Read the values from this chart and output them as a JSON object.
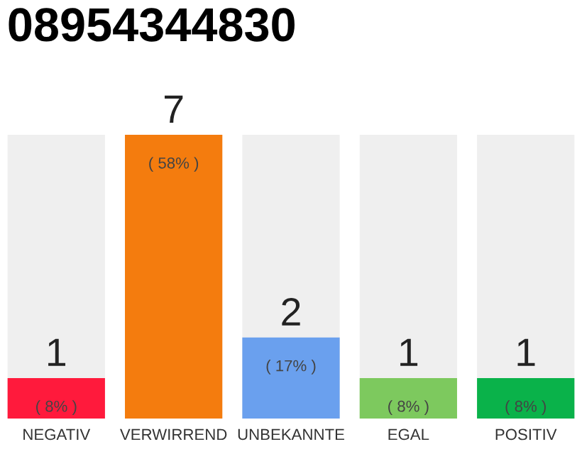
{
  "chart_data": {
    "type": "bar",
    "title": "08954344830",
    "categories": [
      "NEGATIV",
      "VERWIRREND",
      "UNBEKANNTE",
      "EGAL",
      "POSITIV"
    ],
    "values": [
      1,
      7,
      2,
      1,
      1
    ],
    "colors": [
      "#ff1a3c",
      "#f47c0e",
      "#6aa0ee",
      "#7dc95e",
      "#0ab24a"
    ],
    "value_labels": [
      "1",
      "7",
      "2",
      "1",
      "1"
    ],
    "annotations": [
      {
        "text": "( 8% )",
        "x": "NEGATIV",
        "y": 1
      },
      {
        "text": "( 58% )",
        "x": "VERWIRREND",
        "y": 7
      },
      {
        "text": "( 17% )",
        "x": "UNBEKANNTE",
        "y": 2
      },
      {
        "text": "( 8% )",
        "x": "EGAL",
        "y": 1
      },
      {
        "text": "( 8% )",
        "x": "POSITIV",
        "y": 1
      }
    ],
    "tick_labels": "x",
    "grid": false,
    "legend": false
  }
}
